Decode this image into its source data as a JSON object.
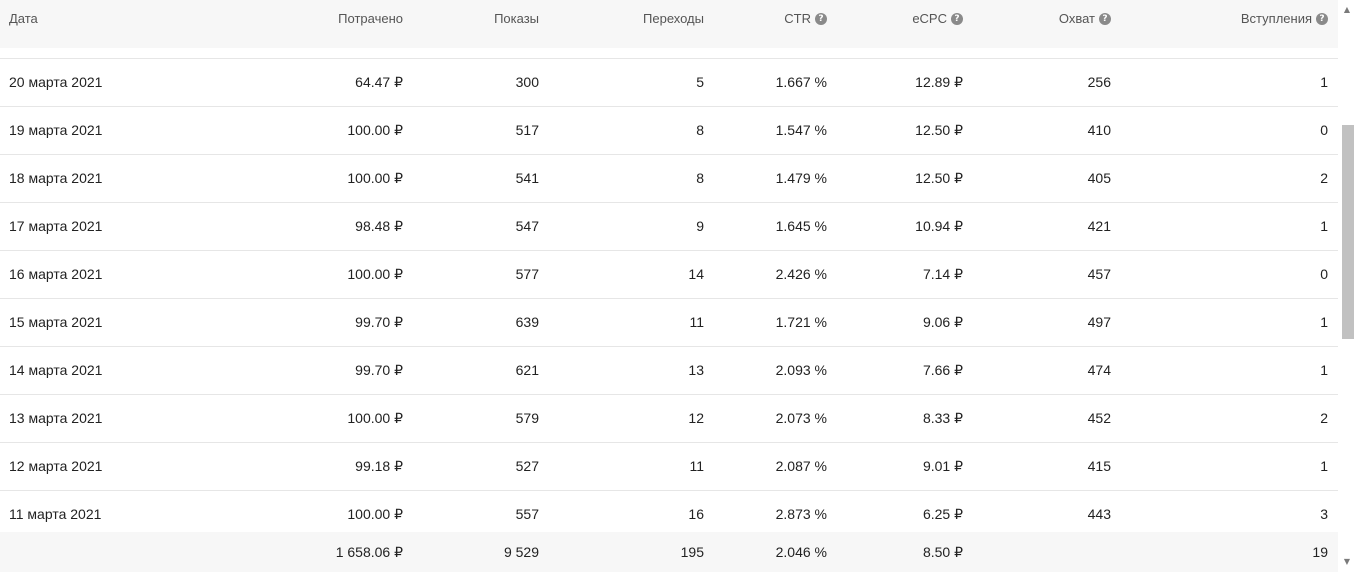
{
  "table": {
    "headers": {
      "date": "Дата",
      "spent": "Потрачено",
      "shows": "Показы",
      "clicks": "Переходы",
      "ctr": "CTR",
      "ecpc": "eCPC",
      "reach": "Охват",
      "joins": "Вступления"
    },
    "help_icons": [
      "question-icon",
      "question-icon",
      "question-icon",
      "question-icon"
    ],
    "rows": [
      {
        "date": "20 марта 2021",
        "spent": "64.47 ₽",
        "shows": "300",
        "clicks": "5",
        "ctr": "1.667 %",
        "ecpc": "12.89 ₽",
        "reach": "256",
        "joins": "1"
      },
      {
        "date": "19 марта 2021",
        "spent": "100.00 ₽",
        "shows": "517",
        "clicks": "8",
        "ctr": "1.547 %",
        "ecpc": "12.50 ₽",
        "reach": "410",
        "joins": "0"
      },
      {
        "date": "18 марта 2021",
        "spent": "100.00 ₽",
        "shows": "541",
        "clicks": "8",
        "ctr": "1.479 %",
        "ecpc": "12.50 ₽",
        "reach": "405",
        "joins": "2"
      },
      {
        "date": "17 марта 2021",
        "spent": "98.48 ₽",
        "shows": "547",
        "clicks": "9",
        "ctr": "1.645 %",
        "ecpc": "10.94 ₽",
        "reach": "421",
        "joins": "1"
      },
      {
        "date": "16 марта 2021",
        "spent": "100.00 ₽",
        "shows": "577",
        "clicks": "14",
        "ctr": "2.426 %",
        "ecpc": "7.14 ₽",
        "reach": "457",
        "joins": "0"
      },
      {
        "date": "15 марта 2021",
        "spent": "99.70 ₽",
        "shows": "639",
        "clicks": "11",
        "ctr": "1.721 %",
        "ecpc": "9.06 ₽",
        "reach": "497",
        "joins": "1"
      },
      {
        "date": "14 марта 2021",
        "spent": "99.70 ₽",
        "shows": "621",
        "clicks": "13",
        "ctr": "2.093 %",
        "ecpc": "7.66 ₽",
        "reach": "474",
        "joins": "1"
      },
      {
        "date": "13 марта 2021",
        "spent": "100.00 ₽",
        "shows": "579",
        "clicks": "12",
        "ctr": "2.073 %",
        "ecpc": "8.33 ₽",
        "reach": "452",
        "joins": "2"
      },
      {
        "date": "12 марта 2021",
        "spent": "99.18 ₽",
        "shows": "527",
        "clicks": "11",
        "ctr": "2.087 %",
        "ecpc": "9.01 ₽",
        "reach": "415",
        "joins": "1"
      },
      {
        "date": "11 марта 2021",
        "spent": "100.00 ₽",
        "shows": "557",
        "clicks": "16",
        "ctr": "2.873 %",
        "ecpc": "6.25 ₽",
        "reach": "443",
        "joins": "3"
      }
    ],
    "totals": {
      "date": "",
      "spent": "1 658.06 ₽",
      "shows": "9 529",
      "clicks": "195",
      "ctr": "2.046 %",
      "ecpc": "8.50 ₽",
      "reach": "",
      "joins": "19"
    }
  },
  "scrollbar": {
    "up_icon": "arrow-up-icon",
    "down_icon": "arrow-down-icon",
    "thumb_start_fraction": 0.2,
    "thumb_size_fraction": 0.4
  },
  "colors": {
    "header_bg": "#f7f7f7",
    "row_border": "#e6e6e6",
    "help_icon": "#8a8a8a",
    "scroll_thumb": "#c1c1c1"
  }
}
